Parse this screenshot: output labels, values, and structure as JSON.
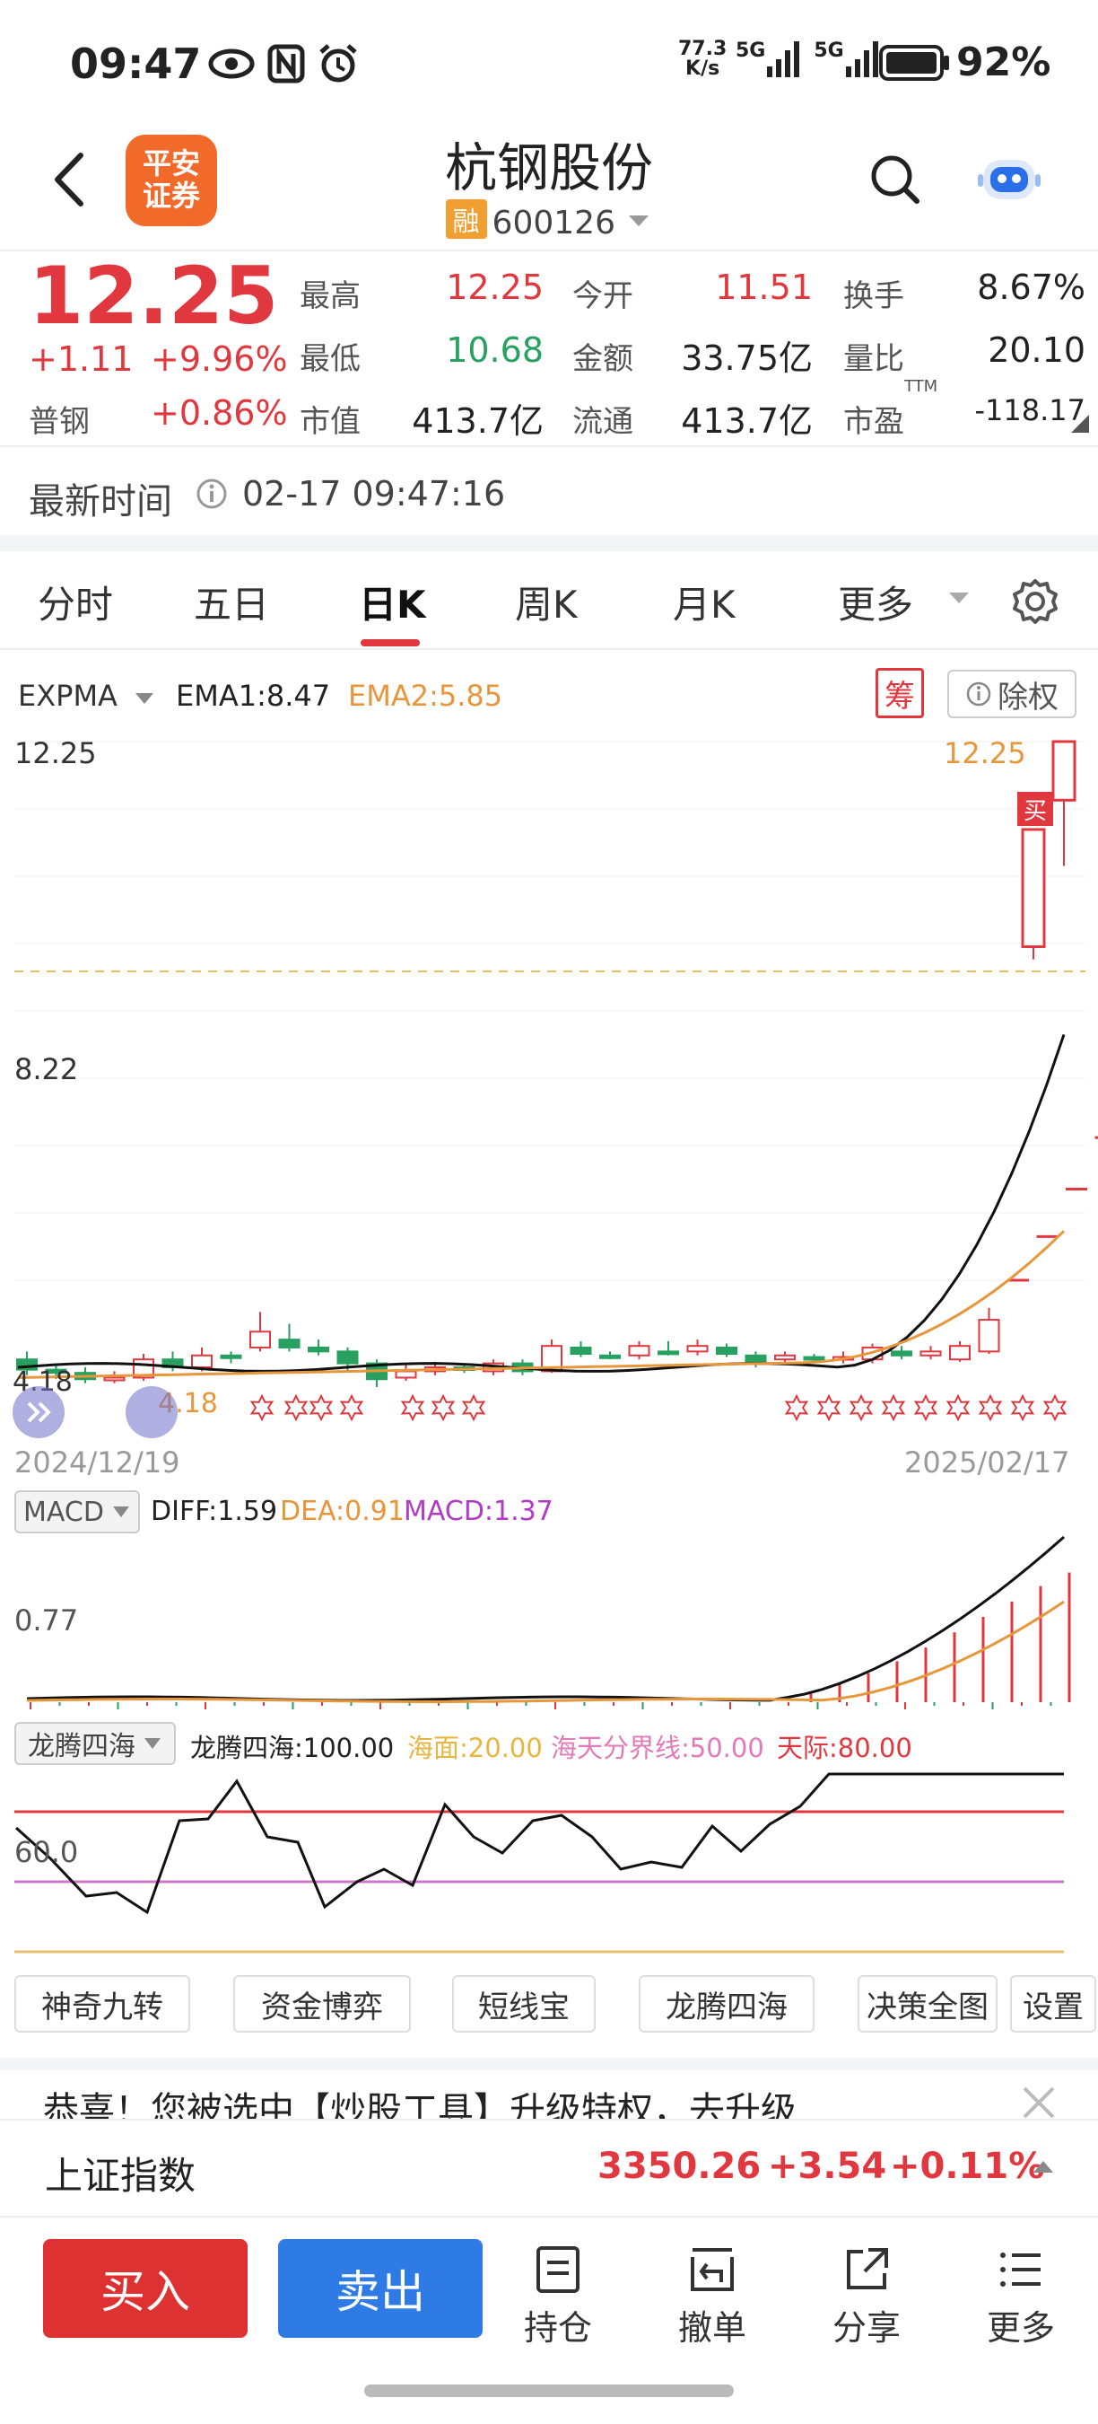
{
  "status_bar": {
    "time": "09:47",
    "net_speed_top": "77.3",
    "net_speed_bottom": "K/s",
    "signal1": "5G",
    "signal2": "5G",
    "battery": "92%"
  },
  "header": {
    "logo_text_line1": "平安",
    "logo_text_line2": "证券",
    "stock_name": "杭钢股份",
    "margin_badge": "融",
    "stock_code": "600126"
  },
  "quote": {
    "price": "12.25",
    "change": "+1.11",
    "change_pct": "+9.96%",
    "sector_label": "普钢",
    "sector_pct": "+0.86%",
    "fields": [
      {
        "label": "最高",
        "value": "12.25",
        "color": "#e0383e"
      },
      {
        "label": "今开",
        "value": "11.51",
        "color": "#e0383e"
      },
      {
        "label": "换手",
        "value": "8.67%",
        "color": "#222222"
      },
      {
        "label": "最低",
        "value": "10.68",
        "color": "#27a060"
      },
      {
        "label": "金额",
        "value": "33.75亿",
        "color": "#222222"
      },
      {
        "label": "量比",
        "value": "20.10",
        "color": "#222222"
      },
      {
        "label": "市值",
        "value": "413.7亿",
        "color": "#222222"
      },
      {
        "label": "流通",
        "value": "413.7亿",
        "color": "#222222"
      },
      {
        "label": "市盈",
        "value": "-118.17",
        "color": "#222222"
      }
    ],
    "pe_superscript": "TTM",
    "latest_time_label": "最新时间",
    "latest_time": "02-17 09:47:16"
  },
  "tabs": [
    {
      "label": "分时",
      "active": false
    },
    {
      "label": "五日",
      "active": false
    },
    {
      "label": "日K",
      "active": true
    },
    {
      "label": "周K",
      "active": false
    },
    {
      "label": "月K",
      "active": false
    },
    {
      "label": "更多",
      "active": false
    }
  ],
  "kline": {
    "indicator": "EXPMA",
    "ema1": "EMA1:8.47",
    "ema2": "EMA2:5.85",
    "chip_label": "筹",
    "exright_label": "除权",
    "y_top": "12.25",
    "y_mid": "8.22",
    "y_low": "4.18",
    "last_price_tag": "12.25",
    "buy_marker": "买",
    "low_price_tag": "4.18",
    "date_start": "2024/12/19",
    "date_end": "2025/02/17",
    "colors": {
      "up": "#e0383e",
      "down": "#27a060",
      "ema1": "#111111",
      "ema2": "#e8963a"
    }
  },
  "macd": {
    "indicator": "MACD",
    "diff": "DIFF:1.59",
    "dea": "DEA:0.91",
    "macd": "MACD:1.37",
    "y_label": "0.77"
  },
  "longteng": {
    "indicator": "龙腾四海",
    "value": "龙腾四海:100.00",
    "haimian": "海面:20.00",
    "haitian": "海天分界线:50.00",
    "tianji": "天际:80.00",
    "y_label": "60.0"
  },
  "tools": [
    "神奇九转",
    "资金博弈",
    "短线宝",
    "龙腾四海",
    "决策全图",
    "设置"
  ],
  "notice": "恭喜！您被选中【炒股工具】升级特权，去升级",
  "index": {
    "name": "上证指数",
    "value": "3350.26",
    "change": "+3.54",
    "pct": "+0.11%"
  },
  "bottom_nav": {
    "buy": "买入",
    "sell": "卖出",
    "items": [
      "持仓",
      "撤单",
      "分享",
      "更多"
    ]
  }
}
